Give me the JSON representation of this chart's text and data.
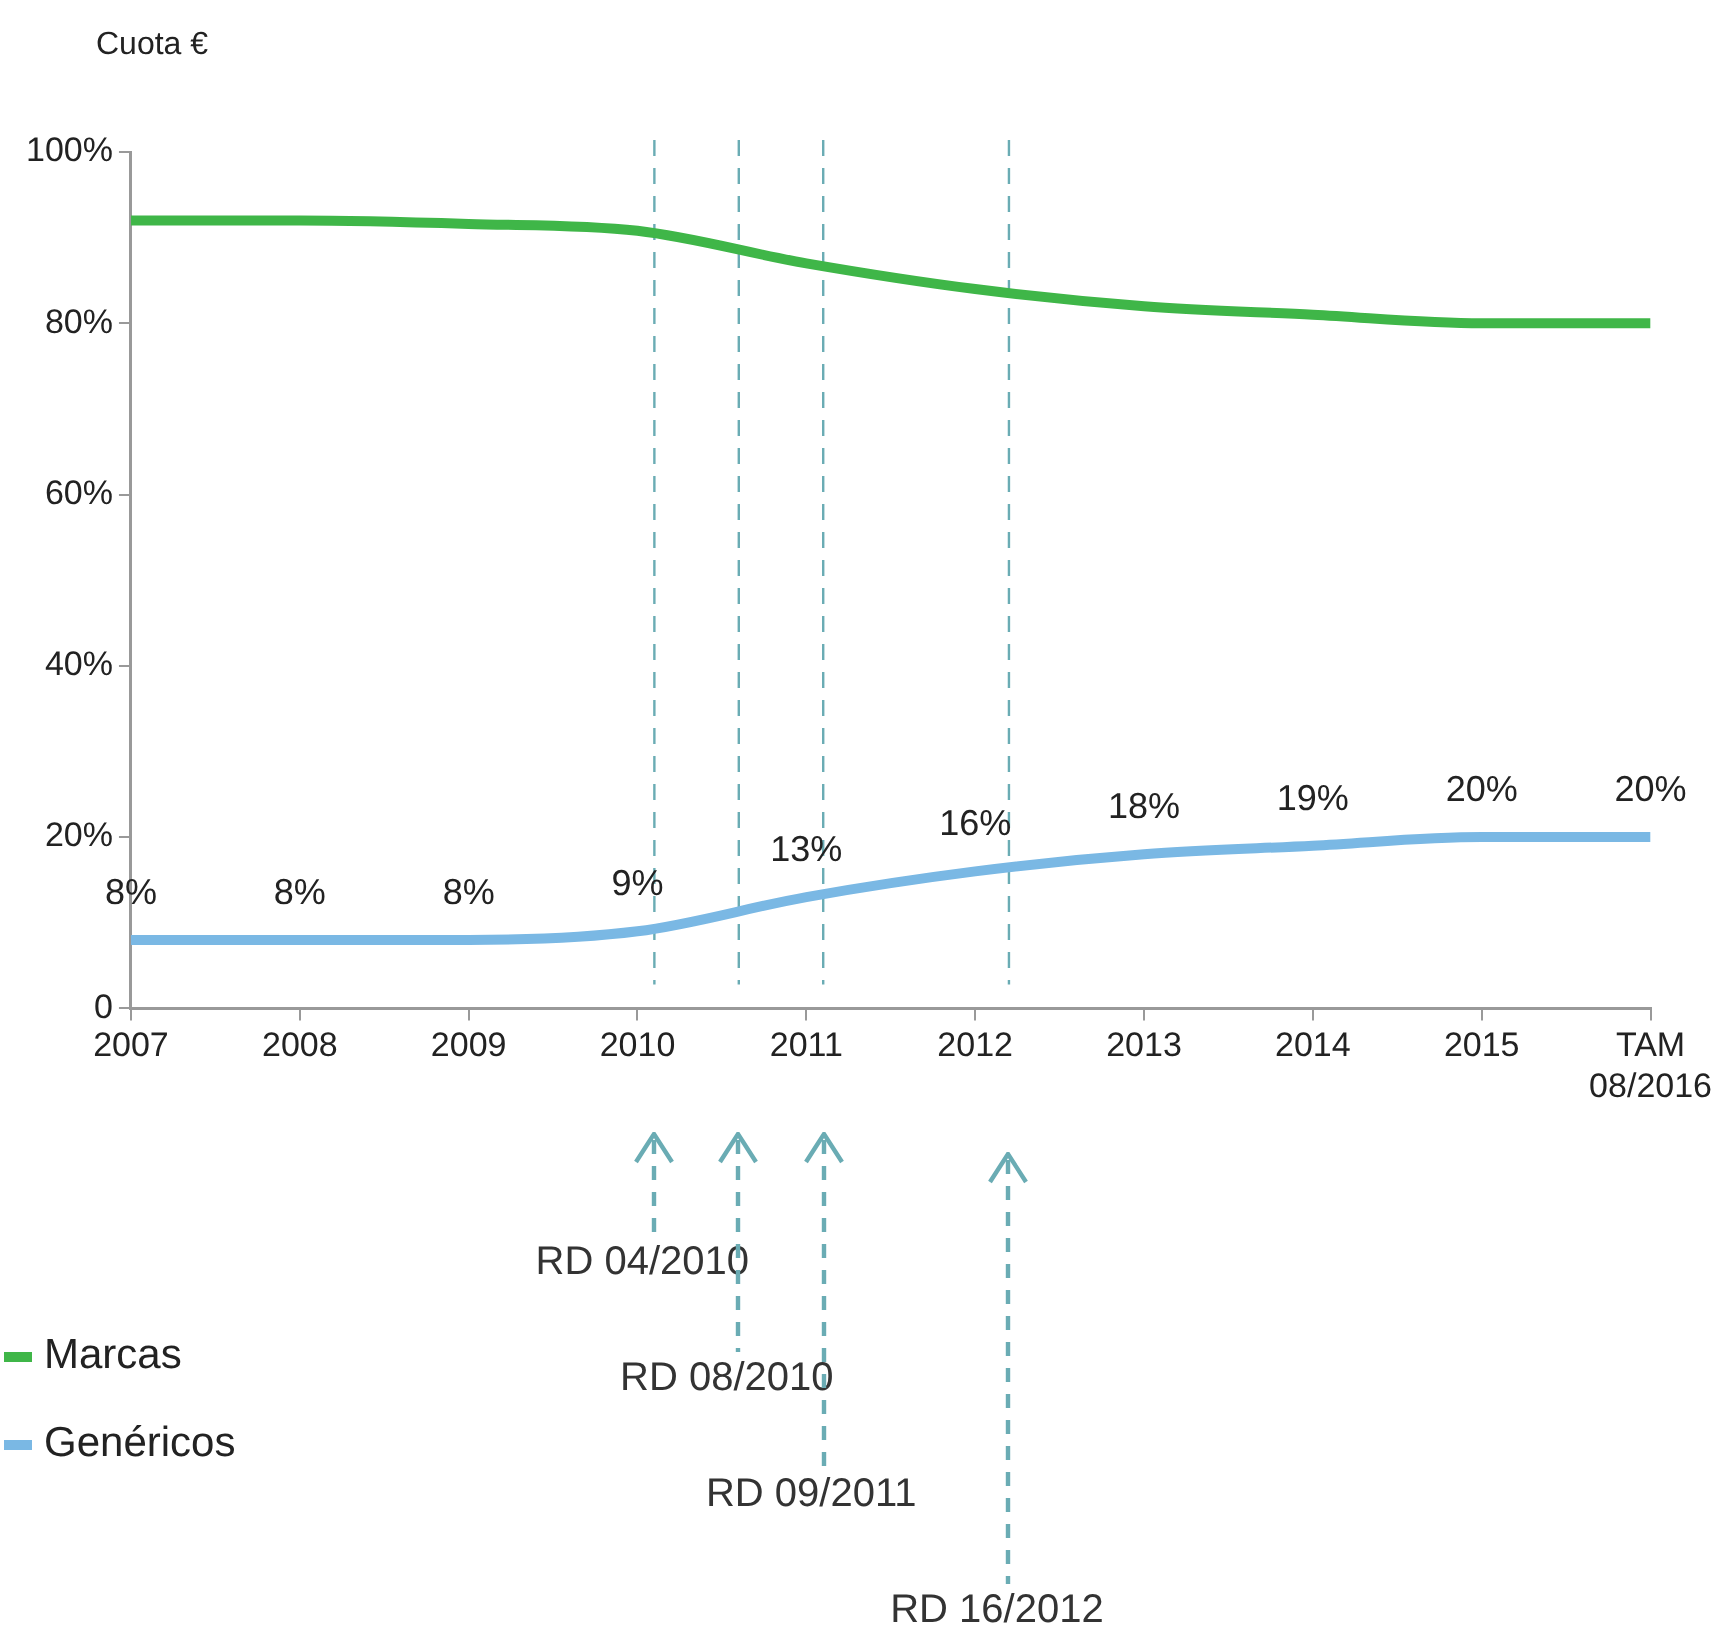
{
  "chart_data": {
    "type": "line",
    "ylabel": "Cuota €",
    "x": [
      2007,
      2008,
      2009,
      2010,
      2011,
      2012,
      2013,
      2014,
      2015,
      2016
    ],
    "xlim": [
      2007,
      2016
    ],
    "xticks": [
      2007,
      2008,
      2009,
      2010,
      2011,
      2012,
      2013,
      2014,
      2015,
      {
        "value": 2016,
        "label": "TAM 08/2016"
      }
    ],
    "ylim": [
      0,
      100
    ],
    "yticks": [
      {
        "value": 0,
        "label": "0"
      },
      {
        "value": 20,
        "label": "20%"
      },
      {
        "value": 40,
        "label": "40%"
      },
      {
        "value": 60,
        "label": "60%"
      },
      {
        "value": 80,
        "label": "80%"
      },
      {
        "value": 100,
        "label": "100%"
      }
    ],
    "series": [
      {
        "name": "Marcas",
        "color": "#3fb648",
        "values": [
          92,
          92,
          91.6,
          90.8,
          87,
          84,
          82,
          81,
          80,
          80
        ]
      },
      {
        "name": "Genéricos",
        "color": "#7ab8e4",
        "values": [
          8,
          8,
          8,
          9,
          13,
          16,
          18,
          19,
          20,
          20
        ],
        "value_labels": [
          "8%",
          "8%",
          "8%",
          "9%",
          "13%",
          "16%",
          "18%",
          "19%",
          "20%",
          "20%"
        ]
      }
    ],
    "ref_lines": [
      {
        "axis": "x",
        "value": 2010.1,
        "color": "#6aacb4",
        "line_style": "dashed"
      },
      {
        "axis": "x",
        "value": 2010.6,
        "color": "#6aacb4",
        "line_style": "dashed"
      },
      {
        "axis": "x",
        "value": 2011.1,
        "color": "#6aacb4",
        "line_style": "dashed"
      },
      {
        "axis": "x",
        "value": 2012.2,
        "color": "#6aacb4",
        "line_style": "dashed"
      }
    ],
    "annotations": [
      "RD 04/2010",
      "RD 08/2010",
      "RD 09/2011",
      "RD 16/2012"
    ],
    "grid": false,
    "legend": "bottom left",
    "marker": "none",
    "line_style": "solid"
  }
}
